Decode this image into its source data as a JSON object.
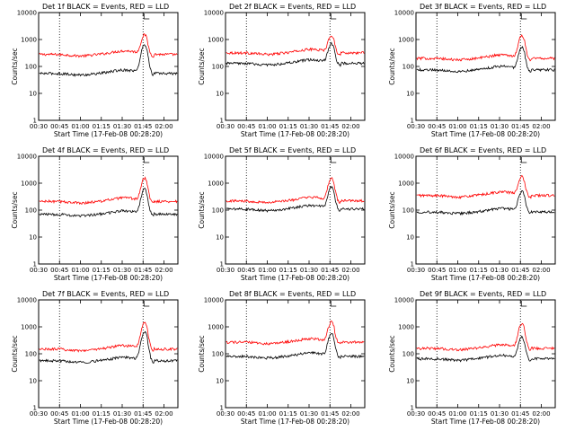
{
  "figure": {
    "chart_data": [
      {
        "type": "line",
        "title": "Det 1f BLACK = Events, RED = LLD",
        "xlabel": "Start Time (17-Feb-08 00:28:20)",
        "ylabel": "Counts/sec",
        "xlim": [
          "00:30",
          "02:10"
        ],
        "ylim": [
          1,
          10000
        ],
        "yscale": "log",
        "x_ticks": [
          "00:30",
          "00:45",
          "01:00",
          "01:15",
          "01:30",
          "01:45",
          "02:00"
        ],
        "y_ticks": [
          "1",
          "10",
          "100",
          "1000",
          "10000"
        ],
        "vlines": [
          "00:45",
          "01:45"
        ],
        "series": [
          {
            "name": "LLD",
            "color": "#ff0000",
            "base": 280,
            "peak": 1500
          },
          {
            "name": "Events",
            "color": "#000000",
            "base": 55,
            "peak": 650
          }
        ]
      },
      {
        "type": "line",
        "title": "Det 2f BLACK = Events, RED = LLD",
        "xlabel": "Start Time (17-Feb-08 00:28:20)",
        "ylabel": "Counts/sec",
        "xlim": [
          "00:30",
          "02:10"
        ],
        "ylim": [
          1,
          10000
        ],
        "yscale": "log",
        "x_ticks": [
          "00:30",
          "00:45",
          "01:00",
          "01:15",
          "01:30",
          "01:45",
          "02:00"
        ],
        "y_ticks": [
          "1",
          "10",
          "100",
          "1000",
          "10000"
        ],
        "vlines": [
          "00:45",
          "01:45"
        ],
        "series": [
          {
            "name": "LLD",
            "color": "#ff0000",
            "base": 320,
            "peak": 1400
          },
          {
            "name": "Events",
            "color": "#000000",
            "base": 130,
            "peak": 700
          }
        ]
      },
      {
        "type": "line",
        "title": "Det 3f BLACK = Events, RED = LLD",
        "xlabel": "Start Time (17-Feb-08 00:28:20)",
        "ylabel": "Counts/sec",
        "xlim": [
          "00:30",
          "02:10"
        ],
        "ylim": [
          1,
          10000
        ],
        "yscale": "log",
        "x_ticks": [
          "00:30",
          "00:45",
          "01:00",
          "01:15",
          "01:30",
          "01:45",
          "02:00"
        ],
        "y_ticks": [
          "1",
          "10",
          "100",
          "1000",
          "10000"
        ],
        "vlines": [
          "00:45",
          "01:45"
        ],
        "series": [
          {
            "name": "LLD",
            "color": "#ff0000",
            "base": 200,
            "peak": 1400
          },
          {
            "name": "Events",
            "color": "#000000",
            "base": 75,
            "peak": 500
          }
        ]
      },
      {
        "type": "line",
        "title": "Det 4f BLACK = Events, RED = LLD",
        "xlabel": "Start Time (17-Feb-08 00:28:20)",
        "ylabel": "Counts/sec",
        "xlim": [
          "00:30",
          "02:10"
        ],
        "ylim": [
          1,
          10000
        ],
        "yscale": "log",
        "x_ticks": [
          "00:30",
          "00:45",
          "01:00",
          "01:15",
          "01:30",
          "01:45",
          "02:00"
        ],
        "y_ticks": [
          "1",
          "10",
          "100",
          "1000",
          "10000"
        ],
        "vlines": [
          "00:45",
          "01:45"
        ],
        "series": [
          {
            "name": "LLD",
            "color": "#ff0000",
            "base": 210,
            "peak": 1500
          },
          {
            "name": "Events",
            "color": "#000000",
            "base": 70,
            "peak": 600
          }
        ]
      },
      {
        "type": "line",
        "title": "Det 5f BLACK = Events, RED = LLD",
        "xlabel": "Start Time (17-Feb-08 00:28:20)",
        "ylabel": "Counts/sec",
        "xlim": [
          "00:30",
          "02:10"
        ],
        "ylim": [
          1,
          10000
        ],
        "yscale": "log",
        "x_ticks": [
          "00:30",
          "00:45",
          "01:00",
          "01:15",
          "01:30",
          "01:45",
          "02:00"
        ],
        "y_ticks": [
          "1",
          "10",
          "100",
          "1000",
          "10000"
        ],
        "vlines": [
          "00:45",
          "01:45"
        ],
        "series": [
          {
            "name": "LLD",
            "color": "#ff0000",
            "base": 220,
            "peak": 1500
          },
          {
            "name": "Events",
            "color": "#000000",
            "base": 110,
            "peak": 700
          }
        ]
      },
      {
        "type": "line",
        "title": "Det 6f BLACK = Events, RED = LLD",
        "xlabel": "Start Time (17-Feb-08 00:28:20)",
        "ylabel": "Counts/sec",
        "xlim": [
          "00:30",
          "02:10"
        ],
        "ylim": [
          1,
          10000
        ],
        "yscale": "log",
        "x_ticks": [
          "00:30",
          "00:45",
          "01:00",
          "01:15",
          "01:30",
          "01:45",
          "02:00"
        ],
        "y_ticks": [
          "1",
          "10",
          "100",
          "1000",
          "10000"
        ],
        "vlines": [
          "00:45",
          "01:45"
        ],
        "series": [
          {
            "name": "LLD",
            "color": "#ff0000",
            "base": 350,
            "peak": 1700
          },
          {
            "name": "Events",
            "color": "#000000",
            "base": 85,
            "peak": 500
          }
        ]
      },
      {
        "type": "line",
        "title": "Det 7f BLACK = Events, RED = LLD",
        "xlabel": "Start Time (17-Feb-08 00:28:20)",
        "ylabel": "Counts/sec",
        "xlim": [
          "00:30",
          "02:10"
        ],
        "ylim": [
          1,
          10000
        ],
        "yscale": "log",
        "x_ticks": [
          "00:30",
          "00:45",
          "01:00",
          "01:15",
          "01:30",
          "01:45",
          "02:00"
        ],
        "y_ticks": [
          "1",
          "10",
          "100",
          "1000",
          "10000"
        ],
        "vlines": [
          "00:45",
          "01:45"
        ],
        "series": [
          {
            "name": "LLD",
            "color": "#ff0000",
            "base": 150,
            "peak": 1400
          },
          {
            "name": "Events",
            "color": "#000000",
            "base": 55,
            "peak": 650
          }
        ]
      },
      {
        "type": "line",
        "title": "Det 8f BLACK = Events, RED = LLD",
        "xlabel": "Start Time (17-Feb-08 00:28:20)",
        "ylabel": "Counts/sec",
        "xlim": [
          "00:30",
          "02:10"
        ],
        "ylim": [
          1,
          10000
        ],
        "yscale": "log",
        "x_ticks": [
          "00:30",
          "00:45",
          "01:00",
          "01:15",
          "01:30",
          "01:45",
          "02:00"
        ],
        "y_ticks": [
          "1",
          "10",
          "100",
          "1000",
          "10000"
        ],
        "vlines": [
          "00:45",
          "01:45"
        ],
        "series": [
          {
            "name": "LLD",
            "color": "#ff0000",
            "base": 270,
            "peak": 1500
          },
          {
            "name": "Events",
            "color": "#000000",
            "base": 80,
            "peak": 550
          }
        ]
      },
      {
        "type": "line",
        "title": "Det 9f BLACK = Events, RED = LLD",
        "xlabel": "Start Time (17-Feb-08 00:28:20)",
        "ylabel": "Counts/sec",
        "xlim": [
          "00:30",
          "02:10"
        ],
        "ylim": [
          1,
          10000
        ],
        "yscale": "log",
        "x_ticks": [
          "00:30",
          "00:45",
          "01:00",
          "01:15",
          "01:30",
          "01:45",
          "02:00"
        ],
        "y_ticks": [
          "1",
          "10",
          "100",
          "1000",
          "10000"
        ],
        "vlines": [
          "00:45",
          "01:45"
        ],
        "series": [
          {
            "name": "LLD",
            "color": "#ff0000",
            "base": 160,
            "peak": 1300
          },
          {
            "name": "Events",
            "color": "#000000",
            "base": 65,
            "peak": 400
          }
        ]
      }
    ]
  }
}
